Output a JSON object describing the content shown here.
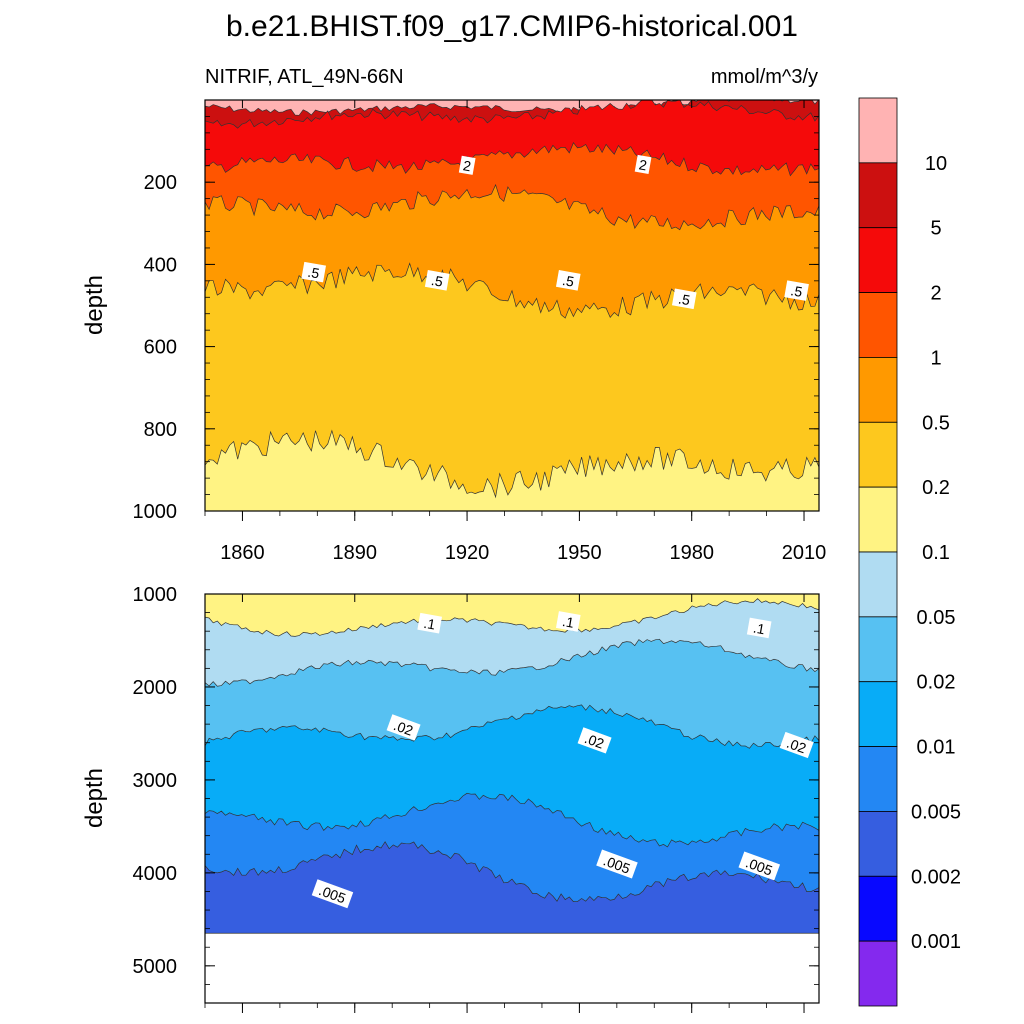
{
  "title": "b.e21.BHIST.f09_g17.CMIP6-historical.001",
  "subtitle_left": "NITRIF, ATL_49N-66N",
  "subtitle_right": "mmol/m^3/y",
  "colorbar": {
    "labels": [
      "10",
      "5",
      "2",
      "1",
      "0.5",
      "0.2",
      "0.1",
      "0.05",
      "0.02",
      "0.01",
      "0.005",
      "0.002",
      "0.001"
    ],
    "colors": [
      "#ffb3b3",
      "#cc1010",
      "#f50a0a",
      "#ff5500",
      "#ff9900",
      "#fdc81e",
      "#fff383",
      "#b0dcf2",
      "#57c1f2",
      "#08acf7",
      "#2387f3",
      "#365ee0",
      "#0808ff",
      "#8429ee"
    ]
  },
  "chart_data": [
    {
      "type": "heatmap",
      "panel": "upper",
      "ylabel": "depth",
      "xlabel": "",
      "xlim": [
        1850,
        2014
      ],
      "ylim": [
        1000,
        0
      ],
      "x_ticks": [
        "1860",
        "1890",
        "1920",
        "1950",
        "1980",
        "2010"
      ],
      "y_ticks": [
        "200",
        "400",
        "600",
        "800",
        "1000"
      ],
      "contour_levels": [
        {
          "level": 10,
          "depth": 15
        },
        {
          "level": 5,
          "depth": 35
        },
        {
          "level": 2,
          "depth": 155
        },
        {
          "level": 1,
          "depth": 270
        },
        {
          "level": 0.5,
          "depth": 465
        },
        {
          "level": 0.2,
          "depth": 875
        }
      ],
      "contour_labels": [
        {
          "text": "2",
          "year": 1920,
          "depth": 160
        },
        {
          "text": "2",
          "year": 1967,
          "depth": 158
        },
        {
          "text": ".5",
          "year": 1879,
          "depth": 420
        },
        {
          "text": ".5",
          "year": 1912,
          "depth": 440
        },
        {
          "text": ".5",
          "year": 1947,
          "depth": 440
        },
        {
          "text": ".5",
          "year": 1978,
          "depth": 485
        },
        {
          "text": ".5",
          "year": 2008,
          "depth": 465
        }
      ]
    },
    {
      "type": "heatmap",
      "panel": "lower",
      "ylabel": "depth",
      "xlabel": "",
      "xlim": [
        1850,
        2014
      ],
      "ylim": [
        5400,
        1000
      ],
      "x_ticks": [],
      "y_ticks": [
        "1000",
        "2000",
        "3000",
        "4000",
        "5000"
      ],
      "bottom_depth": 4650,
      "contour_levels": [
        {
          "level": 0.1,
          "depth": 1270
        },
        {
          "level": 0.05,
          "depth": 1750
        },
        {
          "level": 0.02,
          "depth": 2500
        },
        {
          "level": 0.01,
          "depth": 3480
        },
        {
          "level": 0.005,
          "depth": 4000
        }
      ],
      "contour_labels": [
        {
          "text": ".1",
          "year": 1910,
          "depth": 1320
        },
        {
          "text": ".1",
          "year": 1947,
          "depth": 1300
        },
        {
          "text": ".1",
          "year": 1998,
          "depth": 1370
        },
        {
          "text": ".02",
          "year": 1903,
          "depth": 2440
        },
        {
          "text": ".02",
          "year": 1954,
          "depth": 2580
        },
        {
          "text": ".02",
          "year": 2008,
          "depth": 2630
        },
        {
          "text": ".005",
          "year": 1884,
          "depth": 4230
        },
        {
          "text": ".005",
          "year": 1960,
          "depth": 3910
        },
        {
          "text": ".005",
          "year": 1998,
          "depth": 3930
        }
      ]
    }
  ]
}
